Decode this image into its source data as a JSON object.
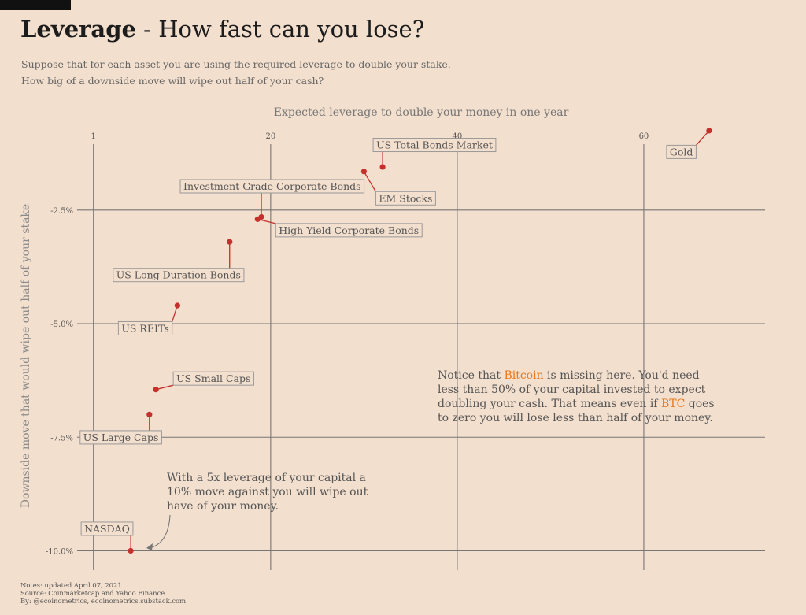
{
  "header": {
    "title_bold": "Leverage",
    "title_rest": " - How fast can you lose?",
    "subtitle_line1": "Suppose that for each asset you are using the required leverage to double your stake.",
    "subtitle_line2": "How big of a downside move will wipe out half of your cash?"
  },
  "chart_data": {
    "type": "scatter",
    "xlabel": "Expected leverage to double your money in one year",
    "ylabel": "Downside move that would wipe out half of your stake",
    "x_ticks": [
      "1",
      "20",
      "40",
      "60"
    ],
    "x_tick_values": [
      1,
      20,
      40,
      60
    ],
    "y_ticks": [
      "-2.5%",
      "-5.0%",
      "-7.5%",
      "-10.0%"
    ],
    "y_tick_values": [
      -2.5,
      -5.0,
      -7.5,
      -10.0
    ],
    "xlim": [
      -1,
      73
    ],
    "ylim": [
      -10.2,
      -0.7
    ],
    "grid": true,
    "marker_color": "#c4302b",
    "points": [
      {
        "name": "Gold",
        "x": 67.0,
        "y": -0.75
      },
      {
        "name": "US Total Bonds Market",
        "x": 32.0,
        "y": -1.55
      },
      {
        "name": "EM Stocks",
        "x": 30.0,
        "y": -1.65
      },
      {
        "name": "Investment Grade Corporate Bonds",
        "x": 19.0,
        "y": -2.65
      },
      {
        "name": "High Yield Corporate Bonds",
        "x": 18.6,
        "y": -2.7
      },
      {
        "name": "US Long Duration Bonds",
        "x": 15.6,
        "y": -3.2
      },
      {
        "name": "US REITs",
        "x": 10.0,
        "y": -4.6
      },
      {
        "name": "US Small Caps",
        "x": 7.7,
        "y": -6.45
      },
      {
        "name": "US Large Caps",
        "x": 7.0,
        "y": -7.0
      },
      {
        "name": "NASDAQ",
        "x": 5.0,
        "y": -10.0
      }
    ],
    "annotations": {
      "bitcoin_note": {
        "line1_a": "Notice that ",
        "line1_hl": "Bitcoin",
        "line1_b": " is missing here. You'd need",
        "line2": "less than 50% of your capital invested to expect",
        "line3_a": "doubling your cash. That means even if ",
        "line3_hl": "BTC",
        "line3_b": " goes",
        "line4": "to zero you will lose less than half of your money.",
        "highlight_color": "#e8761b"
      },
      "leverage_note": {
        "line1": "With a 5x leverage of your capital a",
        "line2": "10% move against you will wipe out",
        "line3": "have of your money."
      }
    }
  },
  "footer": {
    "notes": "Notes: updated April 07, 2021",
    "source": "Source: Coinmarketcap and Yahoo Finance",
    "by": "By: @ecoinometrics, ecoinometrics.substack.com"
  }
}
